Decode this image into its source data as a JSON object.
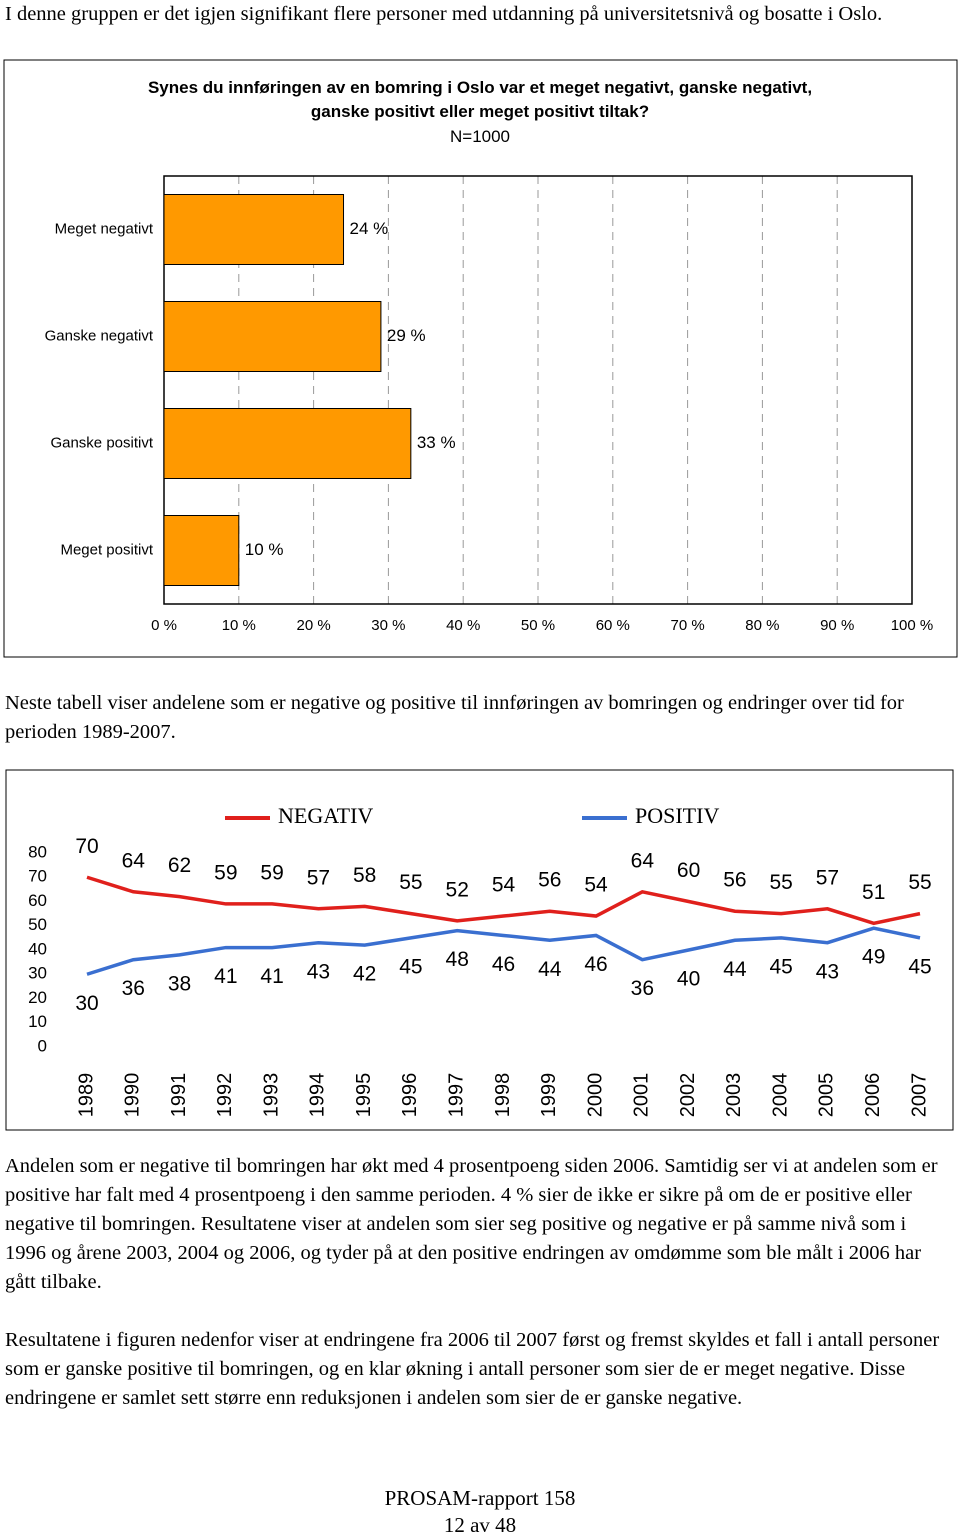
{
  "intro": "I denne gruppen er det igjen signifikant flere personer med utdanning på universitetsnivå og bosatte i Oslo.",
  "chart_data": [
    {
      "type": "bar",
      "orientation": "horizontal",
      "title": "Synes du innføringen av en bomring i Oslo var et meget negativt, ganske negativt, ganske positivt eller meget positivt tiltak?",
      "subtitle": "N=1000",
      "categories": [
        "Meget negativt",
        "Ganske negativt",
        "Ganske positivt",
        "Meget positivt"
      ],
      "values": [
        24,
        29,
        33,
        10
      ],
      "value_labels": [
        "24 %",
        "29 %",
        "33 %",
        "10 %"
      ],
      "color": "#ff9900",
      "xlim": [
        0,
        100
      ],
      "xticks": [
        {
          "value": 0,
          "label": "0 %"
        },
        {
          "value": 10,
          "label": "10 %"
        },
        {
          "value": 20,
          "label": "20 %"
        },
        {
          "value": 30,
          "label": "30 %"
        },
        {
          "value": 40,
          "label": "40 %"
        },
        {
          "value": 50,
          "label": "50 %"
        },
        {
          "value": 60,
          "label": "60 %"
        },
        {
          "value": 70,
          "label": "70 %"
        },
        {
          "value": 80,
          "label": "80 %"
        },
        {
          "value": 90,
          "label": "90 %"
        },
        {
          "value": 100,
          "label": "100 %"
        }
      ],
      "grid": true
    },
    {
      "type": "line",
      "categories": [
        "1989",
        "1990",
        "1991",
        "1992",
        "1993",
        "1994",
        "1995",
        "1996",
        "1997",
        "1998",
        "1999",
        "2000",
        "2001",
        "2002",
        "2003",
        "2004",
        "2005",
        "2006",
        "2007"
      ],
      "series": [
        {
          "name": "NEGATIV",
          "color": "#e0201c",
          "values": [
            70,
            64,
            62,
            59,
            59,
            57,
            58,
            55,
            52,
            54,
            56,
            54,
            64,
            60,
            56,
            55,
            57,
            51,
            55
          ]
        },
        {
          "name": "POSITIV",
          "color": "#3a6fd0",
          "values": [
            30,
            36,
            38,
            41,
            41,
            43,
            42,
            45,
            48,
            46,
            44,
            46,
            36,
            40,
            44,
            45,
            43,
            49,
            45
          ]
        }
      ],
      "ylim": [
        0,
        80
      ],
      "yticks": [
        0,
        10,
        20,
        30,
        40,
        50,
        60,
        70,
        80
      ],
      "grid": false
    }
  ],
  "paragraphs": [
    "Neste tabell viser andelene som er negative og positive til innføringen av bomringen og endringer over tid for perioden 1989-2007.",
    "Andelen som er negative til bomringen har økt med 4 prosentpoeng siden 2006. Samtidig ser vi at andelen som er positive har falt med 4 prosentpoeng i den samme perioden. 4 % sier de ikke er sikre på om de er positive eller negative til bomringen. Resultatene viser at andelen som sier seg positive og negative er på samme nivå som i 1996 og årene 2003, 2004 og 2006, og tyder på at den positive endringen av omdømme som ble målt i 2006 har gått tilbake.",
    "Resultatene i figuren nedenfor viser at endringene fra 2006 til 2007 først og fremst skyldes et fall i antall personer som er ganske positive til bomringen, og en klar økning i antall personer som sier de er meget negative. Disse endringene er samlet sett større enn reduksjonen i andelen som sier de er ganske negative."
  ],
  "footer": [
    "PROSAM-rapport 158",
    "12 av 48"
  ]
}
